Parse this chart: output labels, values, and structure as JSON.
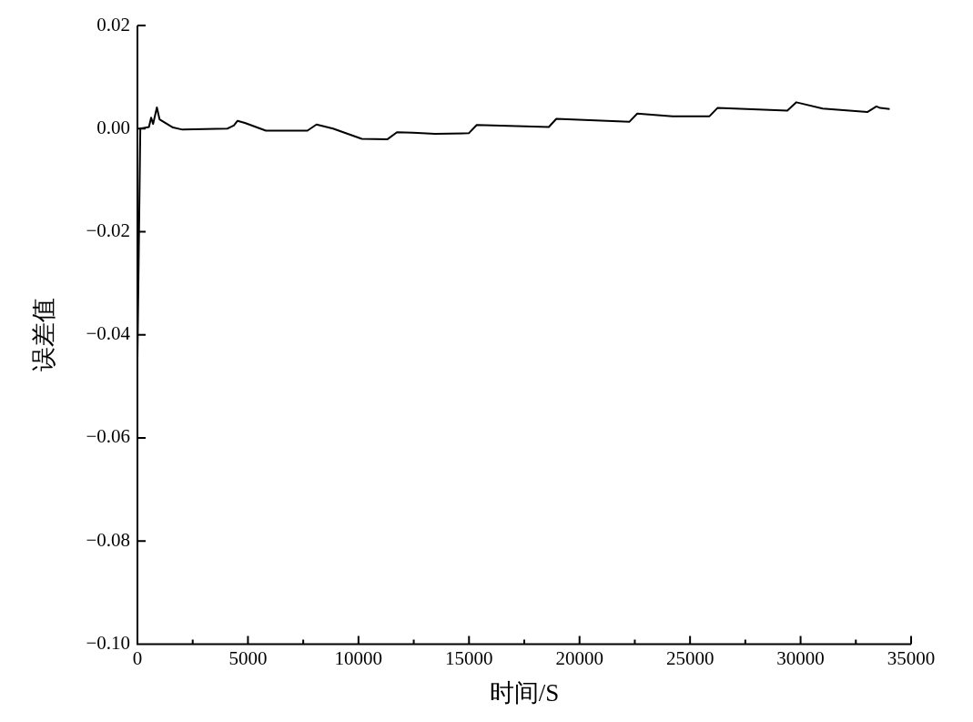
{
  "chart_data": {
    "type": "line",
    "xlabel": "时间/S",
    "ylabel": "误差值",
    "x": [
      0,
      130,
      520,
      620,
      710,
      880,
      1000,
      1610,
      2040,
      4070,
      4360,
      4530,
      4860,
      5810,
      7690,
      8100,
      8850,
      10150,
      11300,
      11740,
      12460,
      13470,
      14990,
      15350,
      18610,
      18950,
      22250,
      22610,
      24200,
      25880,
      26240,
      29400,
      29810,
      31000,
      33020,
      33430,
      33600,
      34030
    ],
    "series": [
      {
        "color": "#000000",
        "values": [
          -0.045,
          0,
          0.0003,
          0.0021,
          0.0009,
          0.0041,
          0.0018,
          0.0002,
          -0.0002,
          0,
          0.0006,
          0.0015,
          0.0011,
          -0.0004,
          -0.0004,
          0.0008,
          0,
          -0.002,
          -0.0021,
          -0.0007,
          -0.0008,
          -0.001,
          -0.0009,
          0.0007,
          0.0003,
          0.0019,
          0.0013,
          0.0029,
          0.0024,
          0.0024,
          0.004,
          0.0035,
          0.0051,
          0.0039,
          0.0032,
          0.0043,
          0.004,
          0.0038
        ]
      }
    ],
    "xlim": [
      0,
      35000
    ],
    "xticks": [
      0,
      {
        "value": 2500,
        "label": null
      },
      5000,
      {
        "value": 7500,
        "label": null
      },
      10000,
      {
        "value": 12500,
        "label": null
      },
      15000,
      {
        "value": 17500,
        "label": null
      },
      20000,
      {
        "value": 22500,
        "label": null
      },
      25000,
      {
        "value": 27500,
        "label": null
      },
      30000,
      {
        "value": 32500,
        "label": null
      },
      35000
    ],
    "ylim": [
      -0.1,
      0.02
    ],
    "yticks": [
      {
        "value": -0.1,
        "label": "−0.10"
      },
      {
        "value": -0.08,
        "label": "−0.08"
      },
      {
        "value": -0.06,
        "label": "−0.06"
      },
      {
        "value": -0.04,
        "label": "−0.04"
      },
      {
        "value": -0.02,
        "label": "−0.02"
      },
      {
        "value": 0,
        "label": "0.00"
      },
      {
        "value": 0.02,
        "label": "0.02"
      }
    ],
    "grid": false,
    "legend": false,
    "marker": "none",
    "line_style": "solid"
  }
}
